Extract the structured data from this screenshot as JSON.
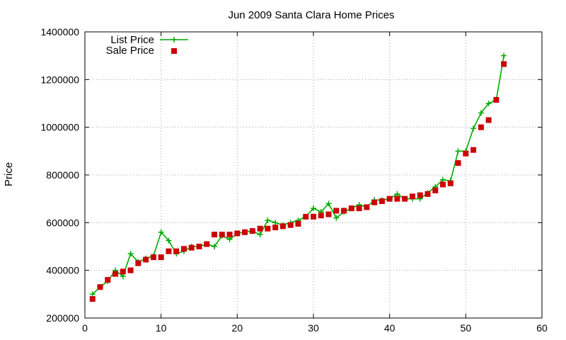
{
  "chart_data": {
    "type": "line",
    "title": "Jun 2009 Santa Clara Home Prices",
    "xlabel": "",
    "ylabel": "Price",
    "xlim": [
      0,
      60
    ],
    "ylim": [
      200000,
      1400000
    ],
    "xticks": [
      0,
      10,
      20,
      30,
      40,
      50,
      60
    ],
    "yticks": [
      200000,
      400000,
      600000,
      800000,
      1000000,
      1200000,
      1400000
    ],
    "grid": true,
    "legend_position": "top-left",
    "series": [
      {
        "name": "List Price",
        "style": "line+points",
        "marker": "plus",
        "color": "#00aa00",
        "x": [
          1,
          2,
          3,
          4,
          5,
          6,
          7,
          8,
          9,
          10,
          11,
          12,
          13,
          14,
          15,
          16,
          17,
          18,
          19,
          20,
          21,
          22,
          23,
          24,
          25,
          26,
          27,
          28,
          29,
          30,
          31,
          32,
          33,
          34,
          35,
          36,
          37,
          38,
          39,
          40,
          41,
          42,
          43,
          44,
          45,
          46,
          47,
          48,
          49,
          50,
          51,
          52,
          53,
          54,
          55
        ],
        "values": [
          300000,
          330000,
          355000,
          400000,
          375000,
          470000,
          435000,
          450000,
          460000,
          560000,
          525000,
          470000,
          480000,
          500000,
          500000,
          510000,
          500000,
          545000,
          530000,
          555000,
          560000,
          565000,
          550000,
          610000,
          600000,
          590000,
          600000,
          610000,
          625000,
          660000,
          645000,
          680000,
          620000,
          645000,
          660000,
          675000,
          665000,
          695000,
          695000,
          700000,
          720000,
          700000,
          700000,
          700000,
          725000,
          750000,
          780000,
          775000,
          900000,
          900000,
          995000,
          1060000,
          1100000,
          1115000,
          1300000
        ]
      },
      {
        "name": "Sale Price",
        "style": "points",
        "marker": "square",
        "color": "#cc0000",
        "x": [
          1,
          2,
          3,
          4,
          5,
          6,
          7,
          8,
          9,
          10,
          11,
          12,
          13,
          14,
          15,
          16,
          17,
          18,
          19,
          20,
          21,
          22,
          23,
          24,
          25,
          26,
          27,
          28,
          29,
          30,
          31,
          32,
          33,
          34,
          35,
          36,
          37,
          38,
          39,
          40,
          41,
          42,
          43,
          44,
          45,
          46,
          47,
          48,
          49,
          50,
          51,
          52,
          53,
          54,
          55
        ],
        "values": [
          280000,
          330000,
          360000,
          385000,
          395000,
          400000,
          430000,
          445000,
          455000,
          455000,
          480000,
          480000,
          490000,
          495000,
          500000,
          510000,
          550000,
          550000,
          550000,
          555000,
          560000,
          565000,
          575000,
          575000,
          580000,
          585000,
          590000,
          595000,
          625000,
          625000,
          630000,
          635000,
          650000,
          650000,
          660000,
          660000,
          665000,
          685000,
          690000,
          700000,
          700000,
          700000,
          710000,
          715000,
          720000,
          735000,
          760000,
          765000,
          850000,
          890000,
          905000,
          1000000,
          1030000,
          1115000,
          1265000
        ]
      }
    ]
  }
}
